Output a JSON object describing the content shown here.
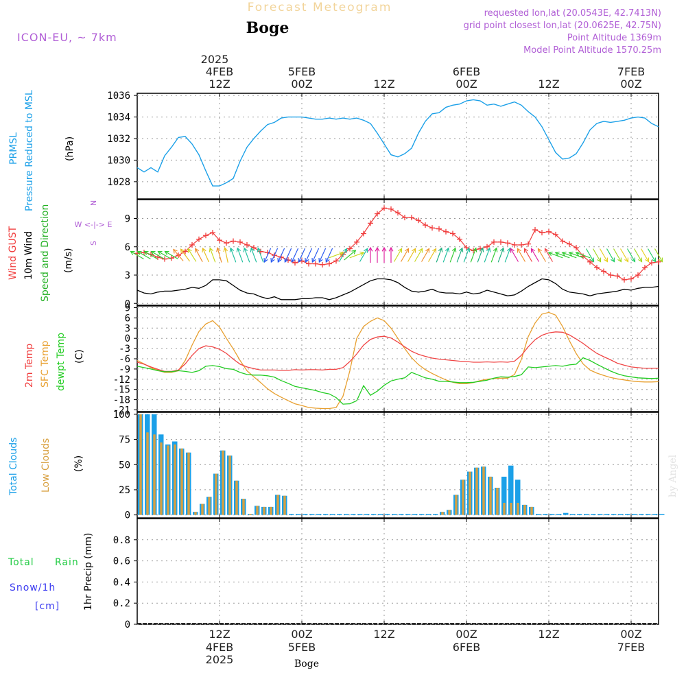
{
  "header": {
    "title": "Forecast Meteogram",
    "station": "Boge",
    "model": "ICON-EU, ~ 7km",
    "requested": "requested lon,lat (20.0543E, 42.7413N)",
    "gridpoint": "grid point closest lon,lat (20.0625E, 42.75N)",
    "point_alt": "Point Altitude 1369m",
    "model_alt": "Model Point Altitude 1570.25m",
    "watermark": "by Angel",
    "footer_station": "Boge",
    "colors": {
      "title": "#f2d49a",
      "info": "#b15fd6",
      "pressure": "#1ba0e8",
      "gust": "#f03c3c",
      "wind": "#000000",
      "dir": "#22b022",
      "t2m": "#f04545",
      "sfc": "#e8a030",
      "dew": "#22cc22",
      "total_clouds": "#1ba0e8",
      "low_clouds": "#d8a040",
      "rain": "#22cc44",
      "snow": "#3a3af0"
    }
  },
  "time_axis": {
    "top_year": "2025",
    "top_labels": [
      {
        "h": 12,
        "l1": "4FEB",
        "l2": "12Z"
      },
      {
        "h": 24,
        "l1": "5FEB",
        "l2": "00Z"
      },
      {
        "h": 36,
        "l1": "",
        "l2": "12Z"
      },
      {
        "h": 48,
        "l1": "6FEB",
        "l2": "00Z"
      },
      {
        "h": 60,
        "l1": "",
        "l2": "12Z"
      },
      {
        "h": 72,
        "l1": "7FEB",
        "l2": "00Z"
      }
    ],
    "bottom_labels": [
      {
        "h": 12,
        "l1": "12Z",
        "l2": "4FEB",
        "l3": "2025"
      },
      {
        "h": 24,
        "l1": "00Z",
        "l2": "5FEB",
        "l3": ""
      },
      {
        "h": 36,
        "l1": "12Z",
        "l2": "",
        "l3": ""
      },
      {
        "h": 48,
        "l1": "00Z",
        "l2": "6FEB",
        "l3": ""
      },
      {
        "h": 60,
        "l1": "12Z",
        "l2": "",
        "l3": ""
      },
      {
        "h": 72,
        "l1": "00Z",
        "l2": "7FEB",
        "l3": ""
      }
    ]
  },
  "panel_labels": {
    "pressure": {
      "l1": "PRMSL",
      "l2": "Pressure Reduced to MSL",
      "unit": "(hPa)"
    },
    "wind": {
      "l1": "Wind GUST",
      "l2": "10m Wind",
      "l3": "Speed and Direction",
      "unit": "(m/s)",
      "compass_n": "N",
      "compass_s": "S",
      "compass_ew": "W <-|-> E"
    },
    "temp": {
      "l1": "2m Temp",
      "l2": "SFC Temp",
      "l3": "dewpt Temp",
      "unit": "(C)"
    },
    "clouds": {
      "l1": "Total Clouds",
      "l2": "Low Clouds",
      "unit": "(%)"
    },
    "precip": {
      "l1": "Total",
      "l1b": "Rain",
      "l2": "Snow/1h",
      "l3": "[cm]",
      "unit": "1hr Precip (mm)"
    }
  },
  "chart_data": [
    {
      "type": "line",
      "title": "PRMSL",
      "ylabel": "(hPa)",
      "ylim": [
        1026.4,
        1036.2
      ],
      "yticks": [
        1028,
        1030,
        1032,
        1034,
        1036
      ],
      "x": [
        0,
        1,
        2,
        3,
        4,
        5,
        6,
        7,
        8,
        9,
        10,
        11,
        12,
        13,
        14,
        15,
        16,
        17,
        18,
        19,
        20,
        21,
        22,
        23,
        24,
        25,
        26,
        27,
        28,
        29,
        30,
        31,
        32,
        33,
        34,
        35,
        36,
        37,
        38,
        39,
        40,
        41,
        42,
        43,
        44,
        45,
        46,
        47,
        48,
        49,
        50,
        51,
        52,
        53,
        54,
        55,
        56,
        57,
        58,
        59,
        60,
        61,
        62,
        63,
        64,
        65,
        66,
        67,
        68,
        69,
        70,
        71,
        72,
        73,
        74,
        75,
        76
      ],
      "series": [
        {
          "name": "PRMSL",
          "values": [
            1029.3,
            1028.9,
            1029.3,
            1028.9,
            1030.4,
            1031.2,
            1032.1,
            1032.2,
            1031.5,
            1030.5,
            1029.0,
            1027.6,
            1027.6,
            1027.9,
            1028.3,
            1029.9,
            1031.2,
            1032.0,
            1032.7,
            1033.3,
            1033.5,
            1033.9,
            1034.0,
            1034.0,
            1034.0,
            1033.9,
            1033.8,
            1033.8,
            1033.9,
            1033.8,
            1033.9,
            1033.8,
            1033.9,
            1033.7,
            1033.4,
            1032.5,
            1031.5,
            1030.5,
            1030.3,
            1030.6,
            1031.1,
            1032.5,
            1033.6,
            1034.3,
            1034.4,
            1034.9,
            1035.1,
            1035.2,
            1035.5,
            1035.6,
            1035.5,
            1035.1,
            1035.2,
            1035.0,
            1035.2,
            1035.4,
            1035.1,
            1034.5,
            1034.0,
            1033.1,
            1031.9,
            1030.7,
            1030.1,
            1030.2,
            1030.6,
            1031.6,
            1032.8,
            1033.4,
            1033.6,
            1033.5,
            1033.6,
            1033.7,
            1033.9,
            1034.0,
            1033.9,
            1033.4,
            1033.1
          ]
        }
      ]
    },
    {
      "type": "line",
      "title": "Wind",
      "ylabel": "(m/s)",
      "ylim": [
        -0.2,
        11
      ],
      "yticks": [
        0,
        3,
        6,
        9
      ],
      "x": [
        0,
        1,
        2,
        3,
        4,
        5,
        6,
        7,
        8,
        9,
        10,
        11,
        12,
        13,
        14,
        15,
        16,
        17,
        18,
        19,
        20,
        21,
        22,
        23,
        24,
        25,
        26,
        27,
        28,
        29,
        30,
        31,
        32,
        33,
        34,
        35,
        36,
        37,
        38,
        39,
        40,
        41,
        42,
        43,
        44,
        45,
        46,
        47,
        48,
        49,
        50,
        51,
        52,
        53,
        54,
        55,
        56,
        57,
        58,
        59,
        60,
        61,
        62,
        63,
        64,
        65,
        66,
        67,
        68,
        69,
        70,
        71,
        72,
        73,
        74,
        75,
        76
      ],
      "series": [
        {
          "name": "Wind GUST",
          "values": [
            5.3,
            5.4,
            5.2,
            4.9,
            4.7,
            4.8,
            5.1,
            5.5,
            6.2,
            6.8,
            7.2,
            7.5,
            6.7,
            6.4,
            6.6,
            6.5,
            6.2,
            5.9,
            5.5,
            5.4,
            5.1,
            4.9,
            4.6,
            4.3,
            4.5,
            4.2,
            4.2,
            4.1,
            4.2,
            4.5,
            5.2,
            5.8,
            6.5,
            7.4,
            8.5,
            9.5,
            10.1,
            10.0,
            9.6,
            9.1,
            9.1,
            8.8,
            8.3,
            8.0,
            7.9,
            7.6,
            7.4,
            6.8,
            5.9,
            5.6,
            5.8,
            6.0,
            6.5,
            6.5,
            6.4,
            6.2,
            6.2,
            6.3,
            7.8,
            7.5,
            7.6,
            7.3,
            6.6,
            6.3,
            5.9,
            5.0,
            4.4,
            3.8,
            3.4,
            3.0,
            2.9,
            2.5,
            2.6,
            3.0,
            3.8,
            4.3,
            4.4
          ]
        },
        {
          "name": "10m Wind",
          "values": [
            1.4,
            1.1,
            1.0,
            1.2,
            1.3,
            1.3,
            1.4,
            1.5,
            1.7,
            1.6,
            1.9,
            2.5,
            2.5,
            2.4,
            1.9,
            1.4,
            1.1,
            1.0,
            0.7,
            0.5,
            0.7,
            0.4,
            0.4,
            0.4,
            0.5,
            0.5,
            0.6,
            0.6,
            0.4,
            0.6,
            0.9,
            1.2,
            1.6,
            2.0,
            2.4,
            2.6,
            2.6,
            2.5,
            2.2,
            1.7,
            1.3,
            1.2,
            1.3,
            1.5,
            1.2,
            1.1,
            1.1,
            1.0,
            1.2,
            1.0,
            1.1,
            1.4,
            1.2,
            1.0,
            0.8,
            0.9,
            1.3,
            1.8,
            2.2,
            2.6,
            2.5,
            2.1,
            1.5,
            1.2,
            1.1,
            1.0,
            0.8,
            1.0,
            1.1,
            1.2,
            1.3,
            1.5,
            1.4,
            1.6,
            1.7,
            1.7,
            1.8
          ]
        }
      ]
    },
    {
      "type": "line",
      "title": "Temperature",
      "ylabel": "(C)",
      "ylim": [
        -21.5,
        9.5
      ],
      "yticks": [
        -21,
        -18,
        -15,
        -12,
        -9,
        -6,
        -3,
        0,
        3,
        6,
        9
      ],
      "x": [
        0,
        1,
        2,
        3,
        4,
        5,
        6,
        7,
        8,
        9,
        10,
        11,
        12,
        13,
        14,
        15,
        16,
        17,
        18,
        19,
        20,
        21,
        22,
        23,
        24,
        25,
        26,
        27,
        28,
        29,
        30,
        31,
        32,
        33,
        34,
        35,
        36,
        37,
        38,
        39,
        40,
        41,
        42,
        43,
        44,
        45,
        46,
        47,
        48,
        49,
        50,
        51,
        52,
        53,
        54,
        55,
        56,
        57,
        58,
        59,
        60,
        61,
        62,
        63,
        64,
        65,
        66,
        67,
        68,
        69,
        70,
        71,
        72,
        73,
        74,
        75,
        76
      ],
      "series": [
        {
          "name": "2m Temp",
          "values": [
            -7.0,
            -7.6,
            -8.4,
            -9.1,
            -9.7,
            -9.7,
            -9.3,
            -7.5,
            -5.0,
            -3.0,
            -2.2,
            -2.5,
            -3.2,
            -4.4,
            -6.1,
            -7.6,
            -8.4,
            -8.9,
            -9.3,
            -9.3,
            -9.3,
            -9.4,
            -9.4,
            -9.2,
            -9.3,
            -9.2,
            -9.2,
            -9.3,
            -9.1,
            -9.1,
            -8.6,
            -6.8,
            -4.6,
            -2.0,
            -0.3,
            0.4,
            0.6,
            0.1,
            -1.1,
            -2.5,
            -3.8,
            -4.7,
            -5.3,
            -5.8,
            -6.1,
            -6.3,
            -6.5,
            -6.7,
            -6.8,
            -7.0,
            -7.0,
            -6.9,
            -7.0,
            -6.9,
            -7.0,
            -6.7,
            -5.0,
            -2.5,
            -0.4,
            0.9,
            1.6,
            1.9,
            1.8,
            1.0,
            -0.2,
            -1.5,
            -3.0,
            -4.4,
            -5.4,
            -6.3,
            -7.3,
            -7.9,
            -8.4,
            -8.6,
            -8.8,
            -8.8,
            -8.8
          ]
        },
        {
          "name": "SFC Temp",
          "values": [
            -6.5,
            -7.5,
            -8.6,
            -9.4,
            -10.0,
            -10.0,
            -9.5,
            -6.5,
            -2.0,
            2.0,
            4.2,
            5.2,
            3.3,
            0.0,
            -3.1,
            -6.5,
            -9.5,
            -11.3,
            -13.0,
            -14.8,
            -16.2,
            -17.3,
            -18.3,
            -19.2,
            -19.7,
            -20.3,
            -20.5,
            -20.6,
            -20.6,
            -20.3,
            -17.0,
            -9.5,
            0.0,
            3.5,
            5.0,
            6.0,
            5.2,
            3.0,
            0.0,
            -3.0,
            -5.7,
            -7.7,
            -9.2,
            -10.3,
            -11.3,
            -12.2,
            -12.9,
            -13.3,
            -13.3,
            -13.0,
            -12.4,
            -12.0,
            -11.8,
            -11.7,
            -11.7,
            -10.6,
            -6.2,
            0.5,
            4.5,
            7.1,
            7.6,
            6.8,
            3.5,
            -0.7,
            -4.5,
            -7.5,
            -9.3,
            -10.2,
            -10.9,
            -11.5,
            -11.9,
            -12.2,
            -12.5,
            -12.7,
            -12.8,
            -12.8,
            -12.7
          ]
        },
        {
          "name": "dewpt Temp",
          "values": [
            -8.2,
            -8.6,
            -9.0,
            -9.5,
            -9.8,
            -9.8,
            -9.5,
            -9.7,
            -10.0,
            -9.5,
            -8.2,
            -8.0,
            -8.3,
            -8.9,
            -9.1,
            -10.0,
            -10.6,
            -10.8,
            -10.8,
            -11.0,
            -11.4,
            -12.4,
            -13.2,
            -14.1,
            -14.5,
            -14.9,
            -15.3,
            -15.9,
            -16.3,
            -17.4,
            -19.3,
            -19.2,
            -18.3,
            -13.9,
            -16.7,
            -15.5,
            -13.8,
            -12.5,
            -12.0,
            -11.6,
            -10.0,
            -10.8,
            -11.6,
            -12.0,
            -12.6,
            -12.6,
            -12.8,
            -13.0,
            -13.0,
            -12.9,
            -12.6,
            -12.3,
            -11.7,
            -11.3,
            -11.4,
            -11.2,
            -10.7,
            -8.4,
            -8.6,
            -8.4,
            -8.2,
            -8.0,
            -8.2,
            -7.8,
            -7.6,
            -5.7,
            -6.5,
            -7.6,
            -8.6,
            -9.6,
            -10.4,
            -11.0,
            -11.3,
            -11.6,
            -11.7,
            -11.8,
            -11.7
          ]
        }
      ]
    },
    {
      "type": "bar",
      "title": "Clouds",
      "ylabel": "(%)",
      "ylim": [
        -3,
        102
      ],
      "yticks": [
        0,
        25,
        50,
        75,
        100
      ],
      "x": [
        0,
        1,
        2,
        3,
        4,
        5,
        6,
        7,
        8,
        9,
        10,
        11,
        12,
        13,
        14,
        15,
        16,
        17,
        18,
        19,
        20,
        21,
        22,
        23,
        24,
        25,
        26,
        27,
        28,
        29,
        30,
        31,
        32,
        33,
        34,
        35,
        36,
        37,
        38,
        39,
        40,
        41,
        42,
        43,
        44,
        45,
        46,
        47,
        48,
        49,
        50,
        51,
        52,
        53,
        54,
        55,
        56,
        57,
        58,
        59,
        60,
        61,
        62,
        63,
        64,
        65,
        66,
        67,
        68,
        69,
        70,
        71,
        72,
        73,
        74,
        75,
        76
      ],
      "series": [
        {
          "name": "Total Clouds",
          "values": [
            100,
            100,
            100,
            80,
            70,
            73,
            66,
            62,
            3,
            11,
            18,
            41,
            64,
            59,
            34,
            16,
            1,
            9,
            8,
            8,
            20,
            19,
            1,
            1,
            1,
            1,
            1,
            1,
            1,
            1,
            1,
            1,
            1,
            1,
            1,
            1,
            1,
            1,
            1,
            1,
            1,
            1,
            1,
            1,
            3,
            5,
            20,
            35,
            43,
            47,
            48,
            38,
            27,
            38,
            49,
            35,
            10,
            8,
            1,
            1,
            1,
            1,
            2,
            1,
            1,
            1,
            1,
            1,
            1,
            1,
            1,
            1,
            1,
            1,
            1,
            1,
            1
          ]
        },
        {
          "name": "Low Clouds",
          "values": [
            100,
            82,
            80,
            72,
            69,
            70,
            66,
            62,
            3,
            11,
            18,
            41,
            64,
            59,
            34,
            16,
            1,
            9,
            8,
            8,
            20,
            19,
            0,
            0,
            0,
            0,
            0,
            0,
            0,
            0,
            0,
            0,
            0,
            0,
            0,
            0,
            0,
            0,
            0,
            0,
            0,
            0,
            0,
            0,
            3,
            5,
            20,
            35,
            43,
            47,
            48,
            38,
            27,
            12,
            12,
            12,
            10,
            8,
            0,
            0,
            0,
            0,
            0,
            0,
            0,
            0,
            0,
            0,
            0,
            0,
            0,
            0,
            0,
            0,
            0,
            0,
            0
          ]
        }
      ]
    },
    {
      "type": "bar",
      "title": "1hr Precip",
      "ylabel": "1hr Precip (mm)",
      "ylim": [
        0,
        1.0
      ],
      "yticks": [
        0,
        0.2,
        0.4,
        0.6,
        0.8
      ],
      "x": [
        0,
        76
      ],
      "series": [
        {
          "name": "Total Rain",
          "values": [
            0,
            0
          ]
        },
        {
          "name": "Snow/1h",
          "values": [
            0,
            0
          ]
        }
      ]
    }
  ]
}
